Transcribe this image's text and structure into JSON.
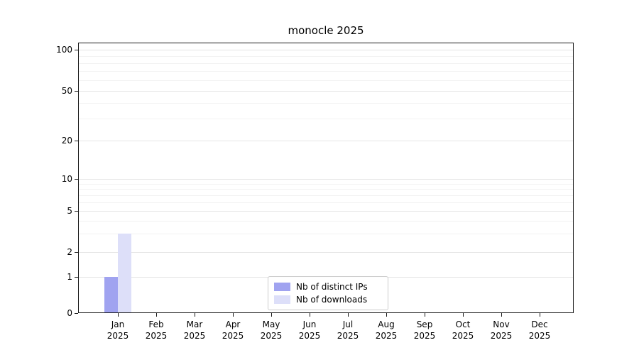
{
  "page": {
    "background_color": "#ffffff"
  },
  "chart_data": {
    "type": "bar",
    "title": "monocle 2025",
    "x_months": [
      "Jan",
      "Feb",
      "Mar",
      "Apr",
      "May",
      "Jun",
      "Jul",
      "Aug",
      "Sep",
      "Oct",
      "Nov",
      "Dec"
    ],
    "x_year": "2025",
    "series": [
      {
        "name": "Nb of distinct IPs",
        "color": "#a0a3f0",
        "values": [
          1,
          0,
          0,
          0,
          0,
          0,
          0,
          0,
          0,
          0,
          0,
          0
        ]
      },
      {
        "name": "Nb of downloads",
        "color": "#dddff9",
        "values": [
          3,
          0,
          0,
          0,
          0,
          0,
          0,
          0,
          0,
          0,
          0,
          0
        ]
      }
    ],
    "yscale": "symlog",
    "yticks": [
      0,
      1,
      2,
      5,
      10,
      20,
      50,
      100
    ],
    "ylim": [
      0,
      110
    ],
    "grid": "horizontal",
    "legend_position": "lower center",
    "gridline_minor_values": [
      3,
      4,
      6,
      7,
      8,
      9,
      30,
      40,
      60,
      70,
      80,
      90
    ]
  }
}
